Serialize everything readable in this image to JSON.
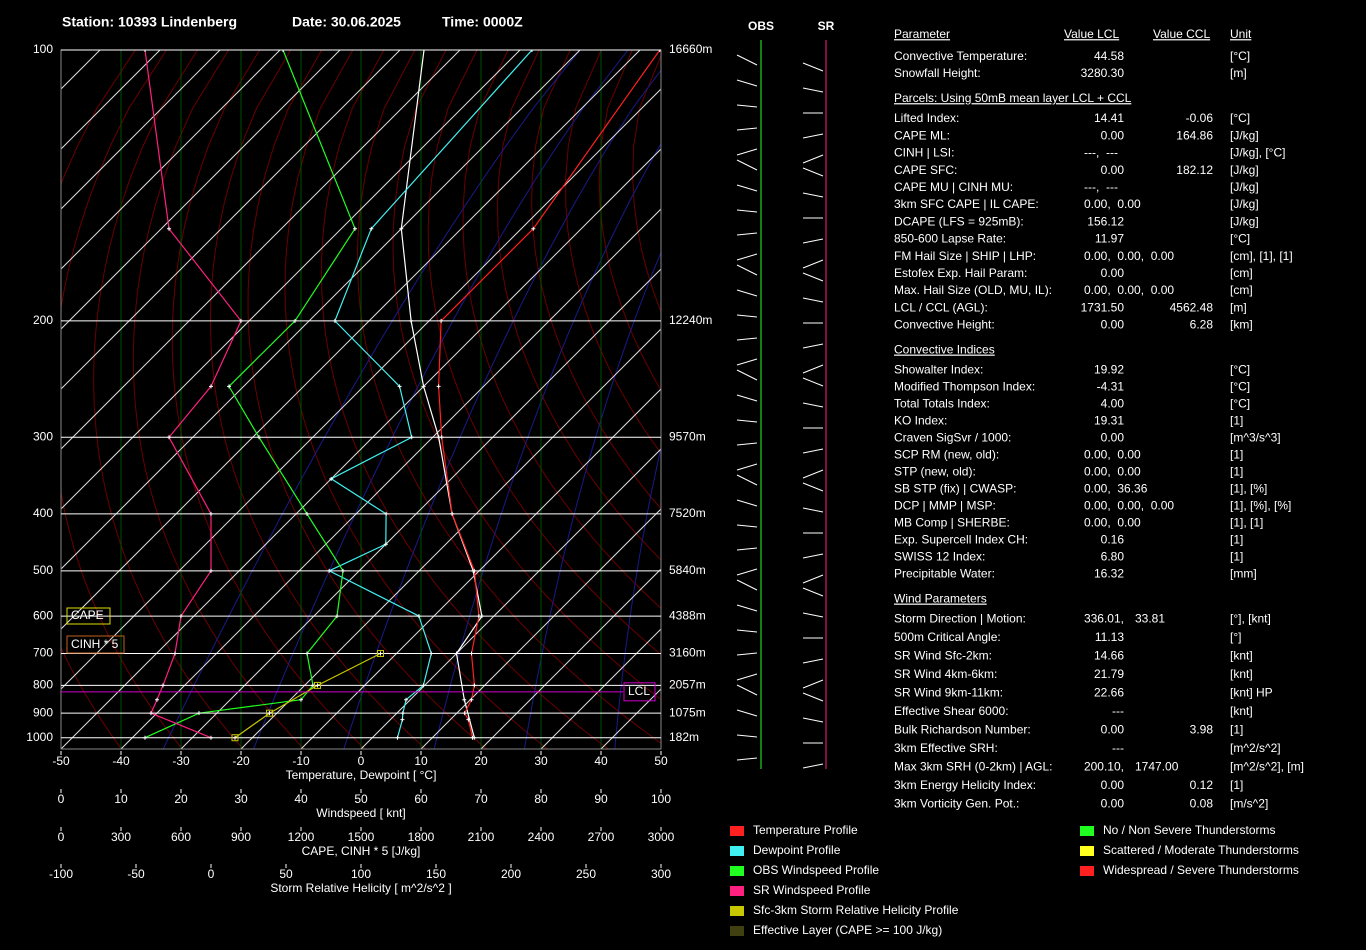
{
  "header": {
    "station": "Station: 10393 Lindenberg",
    "date": "Date: 30.06.2025",
    "time": "Time: 0000Z"
  },
  "chart_data": {
    "type": "skewt",
    "ylim": [
      100,
      1050
    ],
    "yticks": [
      100,
      200,
      300,
      400,
      500,
      600,
      700,
      800,
      900,
      1000
    ],
    "height_ticks": [
      {
        "value": 100,
        "label": "16660m"
      },
      {
        "value": 200,
        "label": "12240m"
      },
      {
        "value": 300,
        "label": "9570m"
      },
      {
        "value": 400,
        "label": "7520m"
      },
      {
        "value": 500,
        "label": "5840m"
      },
      {
        "value": 600,
        "label": "4388m"
      },
      {
        "value": 700,
        "label": "3160m"
      },
      {
        "value": 800,
        "label": "2057m"
      },
      {
        "value": 900,
        "label": "1075m"
      },
      {
        "value": 1000,
        "label": "182m"
      }
    ],
    "xlim": [
      -50,
      50
    ],
    "xticks": [
      -50,
      -40,
      -30,
      -20,
      -10,
      0,
      10,
      20,
      30,
      40,
      50
    ],
    "xlabel": "Temperature, Dewpoint [ °C]",
    "wind_axis": {
      "lim": [
        0,
        100
      ],
      "ticks": [
        0,
        10,
        20,
        30,
        40,
        50,
        60,
        70,
        80,
        90,
        100
      ],
      "label": "Windspeed [ knt]"
    },
    "cape_axis": {
      "lim": [
        0,
        3000
      ],
      "ticks": [
        0,
        300,
        600,
        900,
        1200,
        1500,
        1800,
        2100,
        2400,
        2700,
        3000
      ],
      "label": "CAPE, CINH * 5 [J/kg]"
    },
    "srh_axis": {
      "lim": [
        -100,
        300
      ],
      "ticks": [
        -100,
        -50,
        0,
        50,
        100,
        150,
        200,
        250,
        300
      ],
      "label": "Storm Relative Helicity [ m^2/s^2 ]"
    },
    "series": [
      {
        "name": "Temperature Profile",
        "color": "#ff2020",
        "axis": "x",
        "pressure": [
          1000,
          925,
          900,
          850,
          800,
          700,
          600,
          500,
          400,
          300,
          250,
          200,
          150,
          100
        ],
        "values": [
          16.7,
          13,
          11.3,
          10.2,
          8.3,
          2.5,
          -2.5,
          -10.8,
          -24,
          -38.5,
          -47.5,
          -58,
          -58,
          -66.7
        ]
      },
      {
        "name": "Dewpoint Profile",
        "color": "#40f0f0",
        "axis": "x",
        "pressure": [
          1000,
          925,
          900,
          850,
          800,
          700,
          600,
          500,
          450,
          400,
          350,
          300,
          250,
          200,
          150,
          100
        ],
        "values": [
          4.2,
          2,
          1,
          -0.7,
          -0.2,
          -4.2,
          -12.5,
          -35,
          -30,
          -35,
          -50,
          -43.5,
          -54,
          -75.7,
          -85,
          -88
        ]
      },
      {
        "name": "OBS Windspeed Profile",
        "color": "#20ff20",
        "axis": "wind",
        "pressure": [
          1000,
          900,
          850,
          800,
          700,
          600,
          500,
          400,
          300,
          250,
          200,
          150,
          100
        ],
        "values": [
          14,
          23,
          40,
          42,
          41,
          46,
          47,
          41,
          33,
          28,
          39,
          49,
          37
        ]
      },
      {
        "name": "SR Windspeed Profile",
        "color": "#ff2080",
        "axis": "wind",
        "pressure": [
          1000,
          900,
          850,
          800,
          700,
          600,
          500,
          400,
          300,
          250,
          200,
          150,
          100
        ],
        "values": [
          25,
          15,
          16,
          17,
          19,
          20,
          25,
          25,
          18,
          25,
          30,
          18,
          14
        ]
      },
      {
        "name": "Sfc-3km Storm Relative Helicity Profile",
        "color": "#c8c800",
        "axis": "srh",
        "pressure": [
          1000,
          900,
          800,
          700
        ],
        "values": [
          16,
          39,
          71,
          113
        ]
      }
    ],
    "parcel": {
      "color": "#ffffff",
      "pressure": [
        1000,
        850,
        700,
        600,
        500,
        400,
        300,
        250,
        200,
        150,
        100
      ],
      "values": [
        17,
        9,
        0,
        -2,
        -11,
        -24,
        -39,
        -50,
        -63,
        -80,
        -106
      ]
    },
    "legend_extra": {
      "name": "Effective Layer (CAPE >= 100 J/kg)",
      "color": "#404010"
    },
    "severity_legend": [
      {
        "name": "No / Non Severe Thunderstorms",
        "color": "#20ff20"
      },
      {
        "name": "Scattered / Moderate Thunderstorms",
        "color": "#ffff20"
      },
      {
        "name": "Widespread / Severe Thunderstorms",
        "color": "#ff2020"
      }
    ],
    "cape_label": "CAPE",
    "cinh_label": "CINH * 5",
    "lcl_label": "LCL",
    "lcl_pressure": 822,
    "obs_label": "OBS",
    "sr_label": "SR"
  },
  "parameters": {
    "columns": [
      "Parameter",
      "Value LCL",
      "Value CCL",
      "Unit"
    ],
    "sections": [
      {
        "rows": [
          {
            "label": "Convective Temperature:",
            "lcl": "44.58",
            "lc": "#ff3030",
            "unit": "[°C]"
          },
          {
            "label": "Snowfall Height:",
            "lcl": "3280.30",
            "lc": "#ffffff",
            "unit": "[m]"
          }
        ]
      },
      {
        "title": "Parcels: Using 50mB mean layer LCL + CCL",
        "rows": [
          {
            "label": "Lifted Index:",
            "lcl": "14.41",
            "lc": "#30e030",
            "ccl": "-0.06",
            "cc": "#ffff40",
            "unit": "[°C]"
          },
          {
            "label": "CAPE ML:",
            "lcl": "0.00",
            "lc": "#30e030",
            "ccl": "164.86",
            "cc": "#30e030",
            "unit": "[J/kg]"
          },
          {
            "label": "CINH | LSI:",
            "lcl": "---,  ---",
            "lc": "#ffffff",
            "unit": "[J/kg], [°C]"
          },
          {
            "label": "CAPE SFC:",
            "lcl": "0.00",
            "lc": "#30e030",
            "ccl": "182.12",
            "cc": "#30e030",
            "unit": "[J/kg]"
          },
          {
            "label": "CAPE MU | CINH MU:",
            "lcl": "---,  ---",
            "lc": "#ffffff",
            "unit": "[J/kg]"
          },
          {
            "label": "3km SFC CAPE | IL CAPE:",
            "lcl": "0.00,  0.00",
            "lc": "#30e030",
            "unit": "[J/kg]"
          },
          {
            "label": "DCAPE (LFS = 925mB):",
            "lcl": "156.12",
            "lc": "#30e030",
            "unit": "[J/kg]"
          },
          {
            "label": "850-600 Lapse Rate:",
            "lcl": "11.97",
            "lc": "#30e030",
            "unit": "[°C]"
          },
          {
            "label": "FM Hail Size | SHIP | LHP:",
            "lcl": "0.00,  0.00,  0.00",
            "lc": "#30e030",
            "unit": "[cm], [1], [1]"
          },
          {
            "label": "Estofex Exp. Hail Param:",
            "lcl": "0.00",
            "lc": "#30e030",
            "unit": "[cm]"
          },
          {
            "label": "Max. Hail Size (OLD, MU, IL):",
            "lcl": "0.00,  0.00,  0.00",
            "lc": "#30e030",
            "unit": "[cm]"
          },
          {
            "label": "LCL / CCL (AGL):",
            "lcl": "1731.50",
            "lc": "#ffff40",
            "ccl": "4562.48",
            "cc": "#30e030",
            "unit": "[m]"
          },
          {
            "label": "Convective Height:",
            "lcl": "0.00",
            "lc": "#30e030",
            "ccl": "6.28",
            "cc": "#ffff40",
            "unit": "[km]"
          }
        ]
      },
      {
        "title": "Convective Indices",
        "rows": [
          {
            "label": "Showalter Index:",
            "lcl": "19.92",
            "lc": "#30e030",
            "unit": "[°C]"
          },
          {
            "label": "Modified Thompson Index:",
            "lcl": "-4.31",
            "lc": "#30e030",
            "unit": "[°C]"
          },
          {
            "label": "Total Totals Index:",
            "lcl": "4.00",
            "lc": "#30e030",
            "unit": "[°C]"
          },
          {
            "label": "KO Index:",
            "lcl": "19.31",
            "lc": "#30e030",
            "unit": "[1]"
          },
          {
            "label": "Craven SigSvr / 1000:",
            "lcl": "0.00",
            "lc": "#30e030",
            "unit": "[m^3/s^3]"
          },
          {
            "label": "SCP RM (new, old):",
            "lcl": "0.00,  0.00",
            "lc": "#30e030",
            "unit": "[1]"
          },
          {
            "label": "STP (new, old):",
            "lcl": "0.00,  0.00",
            "lc": "#30e030",
            "unit": "[1]"
          },
          {
            "label": "SB STP (fix) | CWASP:",
            "lcl": "0.00,  36.36",
            "lc": "#30e030",
            "unit": "[1], [%]"
          },
          {
            "label": "DCP | MMP | MSP:",
            "lcl": "0.00,  0.00,  0.00",
            "lc": "#30e030",
            "unit": "[1], [%], [%]"
          },
          {
            "label": "MB Comp | SHERBE:",
            "lcl": "0.00,  0.00",
            "lc": "#30e030",
            "unit": "[1], [1]"
          },
          {
            "label": "Exp. Supercell Index CH:",
            "lcl": "0.16",
            "lc": "#30e030",
            "unit": "[1]"
          },
          {
            "label": "SWISS 12 Index:",
            "lcl": "6.80",
            "lc": "#30e030",
            "unit": "[1]"
          },
          {
            "label": "Precipitable Water:",
            "lcl": "16.32",
            "lc": "#30e030",
            "unit": "[mm]"
          }
        ]
      },
      {
        "title": "Wind Parameters",
        "rows": [
          {
            "label": "Storm Direction | Motion:",
            "lcl": "336.01,",
            "lc": "#ffffff",
            "ccl": "33.81",
            "cc": "#ff3030",
            "unit": "[°], [knt]"
          },
          {
            "label": "500m Critical Angle:",
            "lcl": "11.13",
            "lc": "#30e030",
            "unit": "[°]"
          },
          {
            "label": "SR Wind Sfc-2km:",
            "lcl": "14.66",
            "lc": "#30e030",
            "unit": "[knt]"
          },
          {
            "label": "SR Wind 4km-6km:",
            "lcl": "21.79",
            "lc": "#30e030",
            "unit": "[knt]"
          },
          {
            "label": "SR Wind 9km-11km:",
            "lcl": "22.66",
            "lc": "#30e030",
            "unit": "[knt] HP"
          },
          {
            "label": "Effective Shear 6000:",
            "lcl": "---",
            "lc": "#ffffff",
            "unit": "[knt]"
          },
          {
            "label": "Bulk Richardson Number:",
            "lcl": "0.00",
            "lc": "#30e030",
            "ccl": "3.98",
            "cc": "#ffff40",
            "unit": "[1]"
          },
          {
            "label": "3km Effective SRH:",
            "lcl": "---",
            "lc": "#ffffff",
            "unit": "[m^2/s^2]"
          },
          {
            "label": "Max 3km SRH (0-2km) | AGL:",
            "lcl": "200.10,",
            "lc": "#ff3030",
            "ccl": "1747.00",
            "cc": "#30e030",
            "unit": "[m^2/s^2], [m]"
          },
          {
            "label": "3km Energy Helicity Index:",
            "lcl": "0.00",
            "lc": "#30e030",
            "ccl": "0.12",
            "cc": "#ffff40",
            "unit": "[1]"
          },
          {
            "label": "3km Vorticity Gen. Pot.:",
            "lcl": "0.00",
            "lc": "#30e030",
            "ccl": "0.08",
            "cc": "#ffff40",
            "unit": "[m/s^2]"
          }
        ]
      }
    ]
  }
}
